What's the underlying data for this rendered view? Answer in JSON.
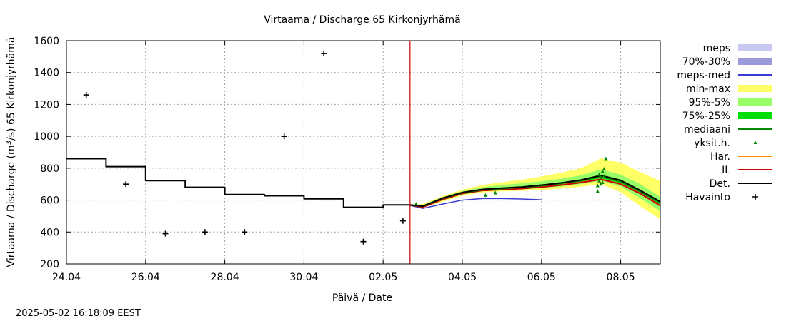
{
  "chart_data": {
    "type": "line",
    "title": "Virtaama / Discharge  65 Kirkonjyrhämä",
    "xlabel": "Päivä / Date",
    "ylabel_parts": [
      "Virtaama / Discharge (m",
      "3",
      "/s)  65 Kirkonjyrhämä"
    ],
    "timestamp": "2025-05-02 16:18:09 EEST",
    "x_range_days": [
      "2025-04-24",
      "2025-05-09"
    ],
    "ylim": [
      200,
      1600
    ],
    "yticks": [
      200,
      400,
      600,
      800,
      1000,
      1200,
      1400,
      1600
    ],
    "xticks": [
      {
        "date": "2025-04-24",
        "label": "24.04"
      },
      {
        "date": "2025-04-26",
        "label": "26.04"
      },
      {
        "date": "2025-04-28",
        "label": "28.04"
      },
      {
        "date": "2025-04-30",
        "label": "30.04"
      },
      {
        "date": "2025-05-02",
        "label": "02.05"
      },
      {
        "date": "2025-05-04",
        "label": "04.05"
      },
      {
        "date": "2025-05-06",
        "label": "06.05"
      },
      {
        "date": "2025-05-08",
        "label": "08.05"
      }
    ],
    "grid": true,
    "legend_position": "right",
    "now_marker": {
      "date": "2025-05-02T16:18",
      "color": "#cc0000"
    },
    "legend": [
      {
        "label": "meps",
        "kind": "box",
        "color": "#c8c8f0"
      },
      {
        "label": "70%-30%",
        "kind": "box",
        "color": "#9a9ad8"
      },
      {
        "label": "meps-med",
        "kind": "line",
        "color": "#3a3ad0"
      },
      {
        "label": "min-max",
        "kind": "box",
        "color": "#ffff66"
      },
      {
        "label": "95%-5%",
        "kind": "box",
        "color": "#99ff66"
      },
      {
        "label": "75%-25%",
        "kind": "box",
        "color": "#00dd00"
      },
      {
        "label": "mediaani",
        "kind": "line",
        "color": "#008800"
      },
      {
        "label": "yksit.h.",
        "kind": "triangle",
        "color": "#008800"
      },
      {
        "label": "Har.",
        "kind": "line",
        "color": "#ff8800"
      },
      {
        "label": "IL",
        "kind": "line",
        "color": "#cc0000"
      },
      {
        "label": "Det.",
        "kind": "line",
        "color": "#000000"
      },
      {
        "label": "Havainto",
        "kind": "plus",
        "color": "#000000"
      }
    ],
    "havainto": [
      {
        "date": "2025-04-24T12:00",
        "value": 1260
      },
      {
        "date": "2025-04-25T12:00",
        "value": 700
      },
      {
        "date": "2025-04-26T12:00",
        "value": 390
      },
      {
        "date": "2025-04-27T12:00",
        "value": 400
      },
      {
        "date": "2025-04-28T12:00",
        "value": 400
      },
      {
        "date": "2025-04-29T12:00",
        "value": 1000
      },
      {
        "date": "2025-04-30T12:00",
        "value": 1520
      },
      {
        "date": "2025-05-01T12:00",
        "value": 340
      },
      {
        "date": "2025-05-02T12:00",
        "value": 470
      }
    ],
    "det_history": [
      [
        "2025-04-24T00:00",
        860
      ],
      [
        "2025-04-25T00:00",
        860
      ],
      [
        "2025-04-25T00:00",
        810
      ],
      [
        "2025-04-26T00:00",
        810
      ],
      [
        "2025-04-26T00:00",
        722
      ],
      [
        "2025-04-27T00:00",
        722
      ],
      [
        "2025-04-27T00:00",
        680
      ],
      [
        "2025-04-28T00:00",
        680
      ],
      [
        "2025-04-28T00:00",
        635
      ],
      [
        "2025-04-29T00:00",
        635
      ],
      [
        "2025-04-29T00:00",
        627
      ],
      [
        "2025-04-30T00:00",
        627
      ],
      [
        "2025-04-30T00:00",
        608
      ],
      [
        "2025-05-01T00:00",
        608
      ],
      [
        "2025-05-01T00:00",
        555
      ],
      [
        "2025-05-02T00:00",
        555
      ],
      [
        "2025-05-02T00:00",
        570
      ],
      [
        "2025-05-02T16:00",
        570
      ]
    ],
    "forecast": {
      "dates": [
        "2025-05-02T16:00",
        "2025-05-03T00:00",
        "2025-05-03T12:00",
        "2025-05-04T00:00",
        "2025-05-04T12:00",
        "2025-05-05T00:00",
        "2025-05-05T12:00",
        "2025-05-06T00:00",
        "2025-05-06T12:00",
        "2025-05-07T00:00",
        "2025-05-07T12:00",
        "2025-05-08T00:00",
        "2025-05-08T12:00",
        "2025-05-09T00:00"
      ],
      "min": [
        568,
        552,
        590,
        628,
        648,
        655,
        658,
        664,
        672,
        684,
        700,
        650,
        560,
        480
      ],
      "max": [
        572,
        575,
        625,
        665,
        695,
        712,
        728,
        748,
        772,
        800,
        862,
        835,
        775,
        720
      ],
      "p5": [
        568,
        554,
        598,
        635,
        655,
        662,
        667,
        675,
        686,
        700,
        722,
        685,
        610,
        530
      ],
      "p95": [
        572,
        570,
        618,
        656,
        680,
        695,
        705,
        718,
        734,
        755,
        792,
        760,
        700,
        620
      ],
      "p25": [
        569,
        557,
        606,
        642,
        660,
        668,
        674,
        684,
        696,
        712,
        738,
        705,
        640,
        570
      ],
      "p75": [
        571,
        565,
        614,
        650,
        669,
        678,
        686,
        698,
        712,
        730,
        760,
        728,
        665,
        595
      ],
      "median": [
        570,
        561,
        610,
        646,
        664,
        672,
        680,
        690,
        704,
        721,
        748,
        716,
        652,
        582
      ],
      "det": [
        570,
        562,
        612,
        648,
        667,
        675,
        682,
        694,
        708,
        726,
        755,
        724,
        660,
        590
      ],
      "il": [
        569,
        556,
        604,
        641,
        660,
        666,
        672,
        682,
        694,
        710,
        730,
        700,
        640,
        565
      ],
      "har": [
        569,
        557,
        606,
        643,
        662,
        668,
        674,
        685,
        697,
        713,
        733,
        703,
        643,
        568
      ]
    },
    "meps_med": [
      [
        "2025-05-02T16:00",
        568
      ],
      [
        "2025-05-03T00:00",
        548
      ],
      [
        "2025-05-03T12:00",
        575
      ],
      [
        "2025-05-04T00:00",
        600
      ],
      [
        "2025-05-04T12:00",
        610
      ],
      [
        "2025-05-05T00:00",
        610
      ],
      [
        "2025-05-05T12:00",
        607
      ],
      [
        "2025-05-06T00:00",
        602
      ]
    ],
    "yksit": [
      [
        "2025-05-02T20:00",
        575
      ],
      [
        "2025-05-04T14:00",
        630
      ],
      [
        "2025-05-04T20:00",
        645
      ],
      [
        "2025-05-07T10:00",
        655
      ],
      [
        "2025-05-07T10:00",
        690
      ],
      [
        "2025-05-07T11:00",
        720
      ],
      [
        "2025-05-07T11:00",
        760
      ],
      [
        "2025-05-07T12:00",
        700
      ],
      [
        "2025-05-07T12:00",
        740
      ],
      [
        "2025-05-07T13:00",
        780
      ],
      [
        "2025-05-07T13:00",
        710
      ],
      [
        "2025-05-07T14:00",
        795
      ],
      [
        "2025-05-07T14:00",
        750
      ],
      [
        "2025-05-07T15:00",
        860
      ]
    ]
  }
}
